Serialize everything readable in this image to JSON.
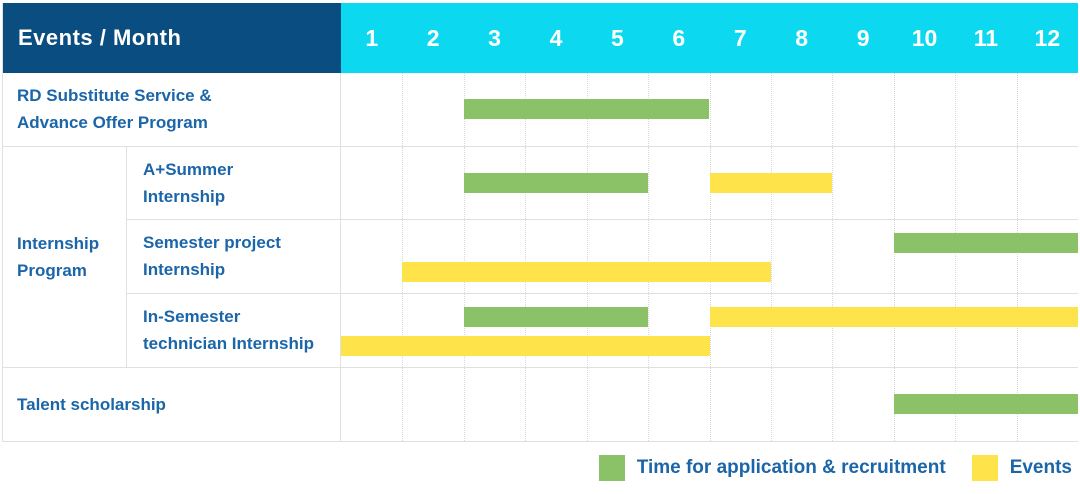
{
  "header": {
    "title": "Events / Month"
  },
  "legend": {
    "application": "Time for application & recruitment",
    "events": "Events"
  },
  "colors": {
    "header_bg": "#0a4d81",
    "month_header_bg": "#0cd9ef",
    "label_text": "#1b65a9",
    "application_bar": "#8bc267",
    "events_bar": "#ffe34a",
    "grid_line": "#e0e0e0"
  },
  "chart_data": {
    "type": "bar",
    "variant": "gantt-schedule-table",
    "title": "Events / Month",
    "xlabel": "Month",
    "x_categories": [
      "1",
      "2",
      "3",
      "4",
      "5",
      "6",
      "7",
      "8",
      "9",
      "10",
      "11",
      "12"
    ],
    "x_range": [
      1,
      12
    ],
    "grid": "dotted-vertical-month-lines",
    "legend_position": "bottom-right",
    "series_legend": [
      {
        "key": "application",
        "name": "Time for application & recruitment",
        "color": "#8bc267"
      },
      {
        "key": "events",
        "name": "Events",
        "color": "#ffe34a"
      }
    ],
    "rows": [
      {
        "group": null,
        "label": "RD Substitute Service &\nAdvance Offer Program",
        "bars": [
          {
            "series": "application",
            "start": 3,
            "end": 6,
            "lane": "center"
          }
        ]
      },
      {
        "group": "Internship\nProgram",
        "label": "A+Summer\nInternship",
        "bars": [
          {
            "series": "application",
            "start": 3,
            "end": 5,
            "lane": "center"
          },
          {
            "series": "events",
            "start": 7,
            "end": 8,
            "lane": "center"
          }
        ]
      },
      {
        "group": "Internship\nProgram",
        "label": "Semester project\nInternship",
        "bars": [
          {
            "series": "application",
            "start": 10,
            "end": 12,
            "lane": "top"
          },
          {
            "series": "events",
            "start": 2,
            "end": 7,
            "lane": "bottom"
          }
        ]
      },
      {
        "group": "Internship\nProgram",
        "label": "In-Semester\ntechnician Internship",
        "bars": [
          {
            "series": "application",
            "start": 3,
            "end": 5,
            "lane": "top"
          },
          {
            "series": "events",
            "start": 7,
            "end": 12,
            "lane": "top"
          },
          {
            "series": "events",
            "start": 1,
            "end": 6,
            "lane": "bottom"
          }
        ]
      },
      {
        "group": null,
        "label": "Talent scholarship",
        "bars": [
          {
            "series": "application",
            "start": 10,
            "end": 12,
            "lane": "center"
          }
        ]
      }
    ]
  }
}
